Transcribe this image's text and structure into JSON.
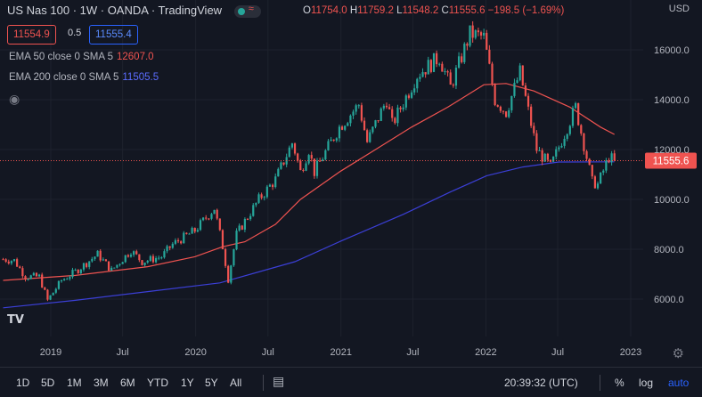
{
  "header": {
    "title": "US Nas 100 · 1W · OANDA · TradingView",
    "ohlc": {
      "o_label": "O",
      "o_value": "11754.0",
      "h_label": "H",
      "h_value": "11759.2",
      "l_label": "L",
      "l_value": "11548.2",
      "c_label": "C",
      "c_value": "11555.6",
      "change": "−198.5 (−1.69%)"
    },
    "currency": "USD",
    "sell_price": "11554.9",
    "spread": "0.5",
    "buy_price": "11555.4"
  },
  "indicators": [
    {
      "label": "EMA 50 close 0 SMA 5",
      "value": "12607.0",
      "color": "#ef5350"
    },
    {
      "label": "EMA 200 close 0 SMA 5",
      "value": "11505.5",
      "color": "#3b3fd6"
    }
  ],
  "toolbar": {
    "timeframes": [
      "1D",
      "5D",
      "1M",
      "3M",
      "6M",
      "YTD",
      "1Y",
      "5Y",
      "All"
    ],
    "clock": "20:39:32 (UTC)",
    "percent_label": "%",
    "log_label": "log",
    "auto_label": "auto"
  },
  "logo_text": "TV",
  "colors": {
    "background": "#131722",
    "up": "#26a69a",
    "down": "#ef5350",
    "grid": "#1e222d",
    "ema50": "#ef5350",
    "ema200": "#3b3fd6"
  },
  "chart_data": {
    "type": "candlestick",
    "ylim": [
      5000,
      16900
    ],
    "y_ticks": [
      6000,
      8000,
      10000,
      12000,
      14000,
      16000
    ],
    "y_tick_labels": [
      "6000.0",
      "8000.0",
      "10000.0",
      "12000.0",
      "14000.0",
      "16000.0"
    ],
    "x_ticks": [
      {
        "label": "2019",
        "date": "2019-01-01"
      },
      {
        "label": "Jul",
        "date": "2019-07-01"
      },
      {
        "label": "2020",
        "date": "2020-01-01"
      },
      {
        "label": "Jul",
        "date": "2020-07-01"
      },
      {
        "label": "2021",
        "date": "2021-01-01"
      },
      {
        "label": "Jul",
        "date": "2021-07-01"
      },
      {
        "label": "2022",
        "date": "2022-01-01"
      },
      {
        "label": "Jul",
        "date": "2022-07-01"
      },
      {
        "label": "2023",
        "date": "2023-01-01"
      }
    ],
    "date_range": [
      "2018-09-03",
      "2022-11-21"
    ],
    "last_price": 11555.6,
    "last_price_label": "11555.6",
    "price_path": [
      [
        "2018-09-03",
        7600
      ],
      [
        "2018-10-01",
        7550
      ],
      [
        "2018-10-29",
        6900
      ],
      [
        "2018-12-03",
        6900
      ],
      [
        "2018-12-24",
        5950
      ],
      [
        "2019-01-28",
        6750
      ],
      [
        "2019-03-04",
        7100
      ],
      [
        "2019-04-29",
        7800
      ],
      [
        "2019-06-03",
        7150
      ],
      [
        "2019-07-22",
        7950
      ],
      [
        "2019-08-19",
        7500
      ],
      [
        "2019-10-07",
        7700
      ],
      [
        "2019-11-04",
        8200
      ],
      [
        "2019-12-30",
        8750
      ],
      [
        "2020-02-17",
        9650
      ],
      [
        "2020-03-09",
        8100
      ],
      [
        "2020-03-23",
        6800
      ],
      [
        "2020-04-13",
        8600
      ],
      [
        "2020-06-08",
        10000
      ],
      [
        "2020-07-20",
        10800
      ],
      [
        "2020-09-01",
        12300
      ],
      [
        "2020-09-21",
        11100
      ],
      [
        "2020-10-12",
        12000
      ],
      [
        "2020-10-26",
        11100
      ],
      [
        "2020-12-28",
        12900
      ],
      [
        "2021-02-15",
        13800
      ],
      [
        "2021-03-08",
        12300
      ],
      [
        "2021-04-26",
        14000
      ],
      [
        "2021-05-10",
        13000
      ],
      [
        "2021-07-12",
        15000
      ],
      [
        "2021-09-06",
        15700
      ],
      [
        "2021-10-04",
        14500
      ],
      [
        "2021-11-22",
        16650
      ],
      [
        "2021-12-27",
        16500
      ],
      [
        "2022-01-24",
        14000
      ],
      [
        "2022-02-21",
        13500
      ],
      [
        "2022-03-28",
        15100
      ],
      [
        "2022-05-09",
        12000
      ],
      [
        "2022-06-13",
        11300
      ],
      [
        "2022-08-15",
        13700
      ],
      [
        "2022-09-26",
        10700
      ],
      [
        "2022-10-10",
        10600
      ],
      [
        "2022-11-07",
        11700
      ],
      [
        "2022-11-21",
        11555
      ]
    ],
    "ema50": [
      [
        "2018-09-03",
        6750
      ],
      [
        "2019-03-04",
        6950
      ],
      [
        "2019-09-02",
        7300
      ],
      [
        "2019-12-30",
        7700
      ],
      [
        "2020-03-09",
        8100
      ],
      [
        "2020-05-04",
        8300
      ],
      [
        "2020-07-20",
        9000
      ],
      [
        "2020-09-21",
        10000
      ],
      [
        "2020-12-28",
        11100
      ],
      [
        "2021-03-29",
        12000
      ],
      [
        "2021-06-28",
        12900
      ],
      [
        "2021-09-27",
        13700
      ],
      [
        "2021-12-27",
        14600
      ],
      [
        "2022-02-21",
        14650
      ],
      [
        "2022-05-02",
        14350
      ],
      [
        "2022-08-01",
        13700
      ],
      [
        "2022-10-17",
        12900
      ],
      [
        "2022-11-21",
        12607
      ]
    ],
    "ema200": [
      [
        "2018-09-03",
        5650
      ],
      [
        "2019-03-04",
        5950
      ],
      [
        "2019-09-02",
        6300
      ],
      [
        "2020-03-02",
        6650
      ],
      [
        "2020-09-07",
        7500
      ],
      [
        "2021-01-04",
        8350
      ],
      [
        "2021-06-07",
        9400
      ],
      [
        "2021-10-04",
        10300
      ],
      [
        "2022-01-03",
        10950
      ],
      [
        "2022-04-04",
        11300
      ],
      [
        "2022-07-04",
        11500
      ],
      [
        "2022-11-21",
        11505.5
      ]
    ]
  }
}
